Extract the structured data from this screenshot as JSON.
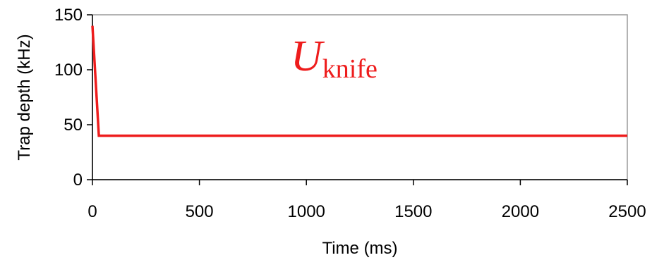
{
  "chart_data": {
    "type": "line",
    "title": "",
    "xlabel": "Time (ms)",
    "ylabel": "Trap depth (kHz)",
    "xlim": [
      0,
      2500
    ],
    "ylim": [
      0,
      150
    ],
    "x_ticks": [
      0,
      500,
      1000,
      1500,
      2000,
      2500
    ],
    "y_ticks": [
      0,
      50,
      100,
      150
    ],
    "x_tick_labels": [
      "0",
      "500",
      "1000",
      "1500",
      "2000",
      "2500"
    ],
    "y_tick_labels": [
      "0",
      "50",
      "100",
      "150"
    ],
    "grid": false,
    "legend": "none",
    "series": [
      {
        "color": "#ee1c1c",
        "x": [
          0,
          30,
          2500
        ],
        "y": [
          140,
          40,
          40
        ]
      }
    ],
    "annotations": [
      {
        "text_main": "U",
        "text_sub": "knife",
        "color": "#ee1c1c"
      }
    ]
  }
}
